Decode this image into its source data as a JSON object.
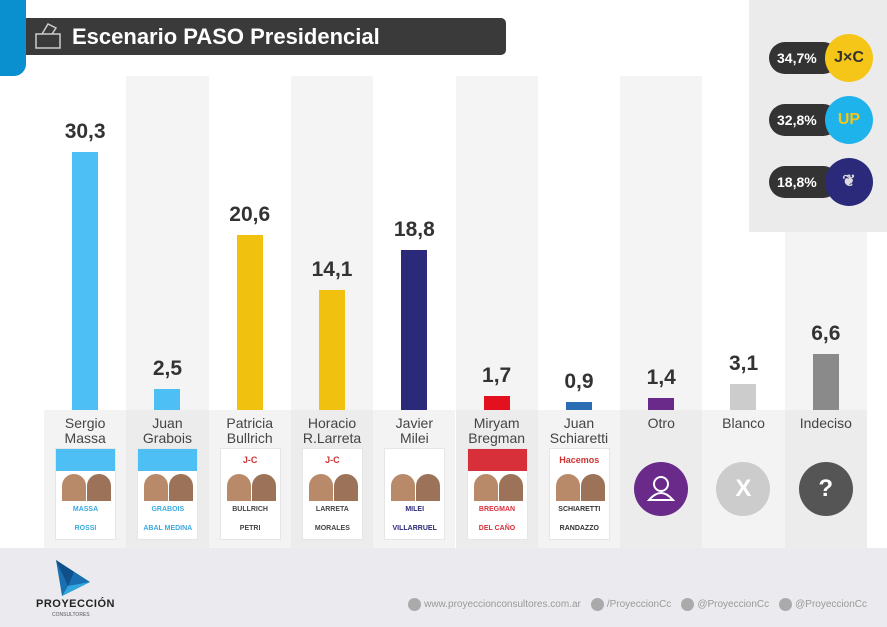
{
  "header": {
    "title": "Escenario PASO Presidencial"
  },
  "chart_data": {
    "type": "bar",
    "categories": [
      "Sergio Massa",
      "Juan Grabois",
      "Patricia Bullrich",
      "Horacio R.Larreta",
      "Javier Milei",
      "Miryam Bregman",
      "Juan Schiaretti",
      "Otro",
      "Blanco",
      "Indeciso"
    ],
    "labels": [
      [
        "Sergio",
        "Massa"
      ],
      [
        "Juan",
        "Grabois"
      ],
      [
        "Patricia",
        "Bullrich"
      ],
      [
        "Horacio",
        "R.Larreta"
      ],
      [
        "Javier",
        "Milei"
      ],
      [
        "Miryam",
        "Bregman"
      ],
      [
        "Juan",
        "Schiaretti"
      ],
      [
        "Otro",
        ""
      ],
      [
        "Blanco",
        ""
      ],
      [
        "Indeciso",
        ""
      ]
    ],
    "values": [
      30.3,
      2.5,
      20.6,
      14.1,
      18.8,
      1.7,
      0.9,
      1.4,
      3.1,
      6.6
    ],
    "value_labels": [
      "30,3",
      "2,5",
      "20,6",
      "14,1",
      "18,8",
      "1,7",
      "0,9",
      "1,4",
      "3,1",
      "6,6"
    ],
    "colors": [
      "#4dbff5",
      "#4dbff5",
      "#f0c20f",
      "#f0c20f",
      "#2b2a7a",
      "#e3101d",
      "#2a6db5",
      "#6a2a8a",
      "#cccccc",
      "#8a8a8a"
    ],
    "ylim": [
      0,
      32
    ],
    "grid": false
  },
  "ballots": [
    {
      "header": "#4dbff5",
      "names": [
        "MASSA",
        "ROSSI"
      ],
      "color": "#3aa9e0"
    },
    {
      "header": "#4dbff5",
      "names": [
        "GRABOIS",
        "ABAL MEDINA"
      ],
      "color": "#3aa9e0"
    },
    {
      "header": "#ffffff",
      "logo": "J-C",
      "names": [
        "BULLRICH",
        "PETRI"
      ],
      "color": "#444"
    },
    {
      "header": "#ffffff",
      "logo": "J-C",
      "names": [
        "LARRETA",
        "MORALES"
      ],
      "color": "#444"
    },
    {
      "header": "#ffffff",
      "names": [
        "MILEI",
        "VILLARRUEL"
      ],
      "color": "#2b2a7a"
    },
    {
      "header": "#d8303a",
      "names": [
        "BREGMAN",
        "DEL CAÑO"
      ],
      "color": "#d8303a"
    },
    {
      "header": "#ffffff",
      "logo": "Hacemos",
      "names": [
        "SCHIARETTI",
        "RANDAZZO"
      ],
      "color": "#333"
    }
  ],
  "icons": [
    {
      "name": "user-icon",
      "glyph": "",
      "bg": "#6a2a8a"
    },
    {
      "name": "x-icon",
      "glyph": "X",
      "bg": "#cccccc"
    },
    {
      "name": "question-icon",
      "glyph": "?",
      "bg": "#555555"
    }
  ],
  "legend": [
    {
      "value": "34,7%",
      "logo": "J×C",
      "bg": "#f5c518",
      "fg": "#333"
    },
    {
      "value": "32,8%",
      "logo": "UP",
      "bg": "#1fb3ec",
      "fg": "#f5c518"
    },
    {
      "value": "18,8%",
      "logo": "❦",
      "bg": "#2b2a7a",
      "fg": "#ddd"
    }
  ],
  "footer": {
    "brand": "PROYECCIÓN",
    "brand_sub": "CONSULTORES",
    "links": [
      "www.proyeccionconsultores.com.ar",
      "/ProyeccionCc",
      "@ProyeccionCc",
      "@ProyeccionCc"
    ]
  }
}
